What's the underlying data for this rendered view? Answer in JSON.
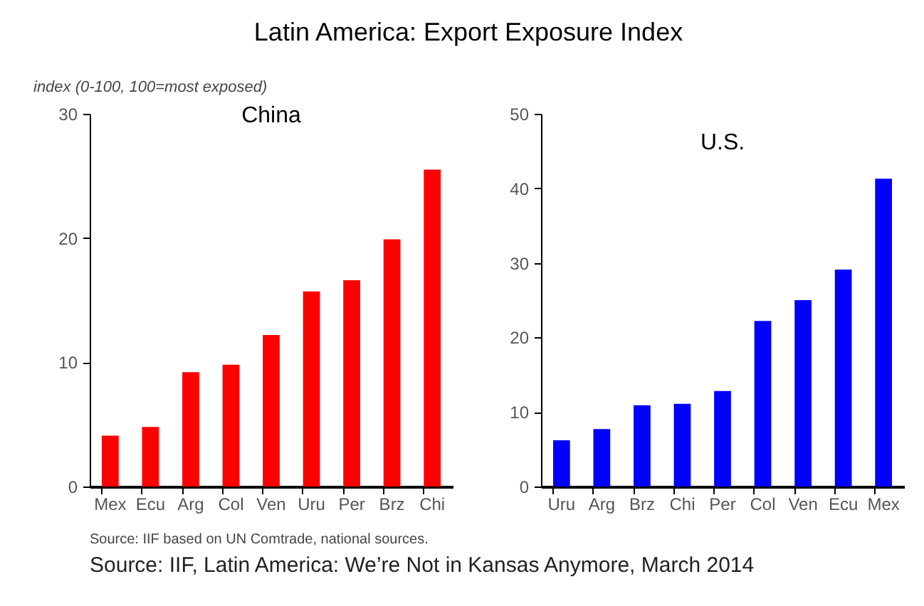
{
  "chart_data": [
    {
      "type": "bar",
      "title": "China",
      "ylabel": "index (0-100, 100=most exposed)",
      "annotations": [
        "Latin America: Export Exposure Index",
        "Source: IIF based on UN Comtrade, national sources.",
        "Source: IIF, Latin America: We’re Not in Kansas Anymore, March 2014"
      ],
      "categories": [
        "Mex",
        "Ecu",
        "Arg",
        "Col",
        "Ven",
        "Uru",
        "Per",
        "Brz",
        "Chi"
      ],
      "values": [
        4.1,
        4.8,
        9.2,
        9.8,
        12.2,
        15.7,
        16.6,
        19.9,
        25.5
      ],
      "color": "#ff0000",
      "ylim": [
        0,
        30
      ],
      "yticks": [
        0,
        10,
        20,
        30
      ],
      "grid": false
    },
    {
      "type": "bar",
      "title": "U.S.",
      "categories": [
        "Uru",
        "Arg",
        "Brz",
        "Chi",
        "Per",
        "Col",
        "Ven",
        "Ecu",
        "Mex"
      ],
      "values": [
        6.2,
        7.7,
        10.9,
        11.1,
        12.8,
        22.2,
        25.0,
        29.1,
        41.3
      ],
      "color": "#0000ff",
      "ylim": [
        0,
        50
      ],
      "yticks": [
        0,
        10,
        20,
        30,
        40,
        50
      ],
      "grid": false
    }
  ]
}
